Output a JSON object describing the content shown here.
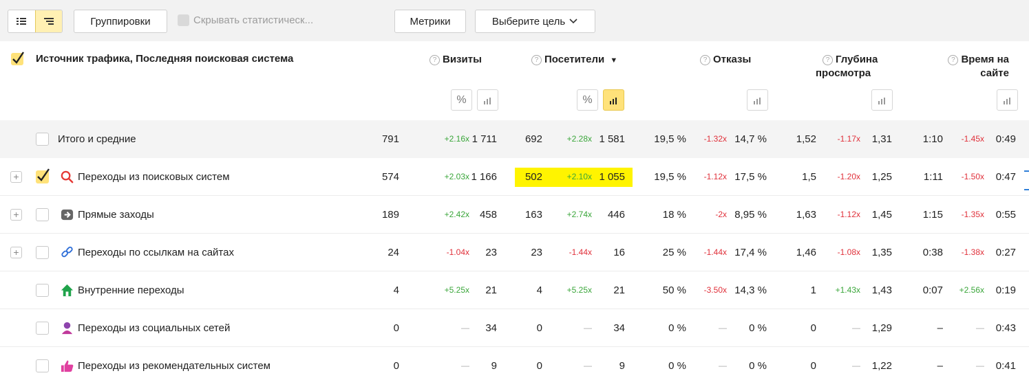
{
  "toolbar": {
    "groupings_label": "Группировки",
    "hide_stats_label": "Скрывать статистическ...",
    "metrics_label": "Метрики",
    "goal_label": "Выберите цель"
  },
  "table": {
    "dimension_title": "Источник трафика, Последняя поисковая система",
    "metrics": [
      {
        "label": "Визиты"
      },
      {
        "label": "Посетители",
        "sort_mark": "▼"
      },
      {
        "label": "Отказы"
      },
      {
        "label": "Глубина",
        "label2": "просмотра"
      },
      {
        "label": "Время на",
        "label2": "сайте"
      }
    ],
    "rows": [
      {
        "name": "Итого и средние",
        "visits": [
          "791",
          "+2.16x",
          "1 711"
        ],
        "users": [
          "692",
          "+2.28x",
          "1 581"
        ],
        "bounce": [
          "19,5 %",
          "-1.32x",
          "14,7 %"
        ],
        "depth": [
          "1,52",
          "-1.17x",
          "1,31"
        ],
        "time": [
          "1:10",
          "-1.45x",
          "0:49"
        ]
      },
      {
        "name": "Переходы из поисковых систем",
        "visits": [
          "574",
          "+2.03x",
          "1 166"
        ],
        "users": [
          "502",
          "+2.10x",
          "1 055"
        ],
        "bounce": [
          "19,5 %",
          "-1.12x",
          "17,5 %"
        ],
        "depth": [
          "1,5",
          "-1.20x",
          "1,25"
        ],
        "time": [
          "1:11",
          "-1.50x",
          "0:47"
        ]
      },
      {
        "name": "Прямые заходы",
        "visits": [
          "189",
          "+2.42x",
          "458"
        ],
        "users": [
          "163",
          "+2.74x",
          "446"
        ],
        "bounce": [
          "18 %",
          "-2x",
          "8,95 %"
        ],
        "depth": [
          "1,63",
          "-1.12x",
          "1,45"
        ],
        "time": [
          "1:15",
          "-1.35x",
          "0:55"
        ]
      },
      {
        "name": "Переходы по ссылкам на сайтах",
        "visits": [
          "24",
          "-1.04x",
          "23"
        ],
        "users": [
          "23",
          "-1.44x",
          "16"
        ],
        "bounce": [
          "25 %",
          "-1.44x",
          "17,4 %"
        ],
        "depth": [
          "1,46",
          "-1.08x",
          "1,35"
        ],
        "time": [
          "0:38",
          "-1.38x",
          "0:27"
        ]
      },
      {
        "name": "Внутренние переходы",
        "visits": [
          "4",
          "+5.25x",
          "21"
        ],
        "users": [
          "4",
          "+5.25x",
          "21"
        ],
        "bounce": [
          "50 %",
          "-3.50x",
          "14,3 %"
        ],
        "depth": [
          "1",
          "+1.43x",
          "1,43"
        ],
        "time": [
          "0:07",
          "+2.56x",
          "0:19"
        ]
      },
      {
        "name": "Переходы из социальных сетей",
        "visits": [
          "0",
          "—",
          "34"
        ],
        "users": [
          "0",
          "—",
          "34"
        ],
        "bounce": [
          "0 %",
          "—",
          "0 %"
        ],
        "depth": [
          "0",
          "—",
          "1,29"
        ],
        "time": [
          "–",
          "—",
          "0:43"
        ]
      },
      {
        "name": "Переходы из рекомендательных систем",
        "visits": [
          "0",
          "—",
          "9"
        ],
        "users": [
          "0",
          "—",
          "9"
        ],
        "bounce": [
          "0 %",
          "—",
          "0 %"
        ],
        "depth": [
          "0",
          "—",
          "1,22"
        ],
        "time": [
          "–",
          "—",
          "0:41"
        ]
      }
    ]
  },
  "icons": {
    "row_icons": [
      "search-icon",
      "direct-arrow-icon",
      "link-icon",
      "home-icon",
      "social-user-icon",
      "thumbs-up-icon"
    ]
  },
  "colors": {
    "positive": "#3aa63a",
    "negative": "#e0303a",
    "highlight": "#fff400",
    "accent_active": "#ffe27a"
  }
}
